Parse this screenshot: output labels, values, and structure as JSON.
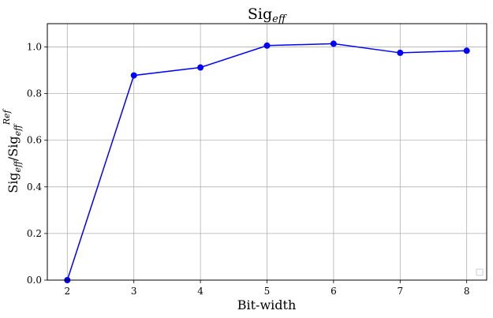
{
  "chart_data": {
    "type": "line",
    "title_main": "Sig",
    "title_sub": "eff",
    "xlabel": "Bit-width",
    "ylabel_main1": "Sig",
    "ylabel_sub1": "eff",
    "ylabel_sep": "/Sig",
    "ylabel_sub2": "eff",
    "ylabel_sup2": "Ref",
    "x": [
      2,
      3,
      4,
      5,
      6,
      7,
      8
    ],
    "y": [
      0.0,
      0.878,
      0.912,
      1.006,
      1.014,
      0.975,
      0.984
    ],
    "xticks": [
      "2",
      "3",
      "4",
      "5",
      "6",
      "7",
      "8"
    ],
    "yticks": [
      "0.0",
      "0.2",
      "0.4",
      "0.6",
      "0.8",
      "1.0"
    ],
    "xlim": [
      1.7,
      8.3
    ],
    "ylim": [
      0.0,
      1.1
    ],
    "grid": true,
    "legend": "lower-right",
    "series_color": "#0000ff",
    "grid_color": "#b0b0b0"
  }
}
